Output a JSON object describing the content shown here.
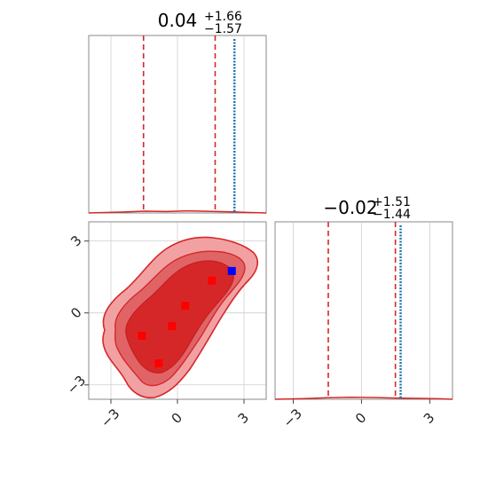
{
  "chart_data": [
    {
      "type": "line",
      "panel": "top-left marginal histogram (parameter 1)",
      "title": {
        "median": "0.04",
        "plus": "+1.66",
        "minus": "−1.57"
      },
      "xlim": [
        -4.0,
        4.0
      ],
      "ylim": [
        0,
        1.0
      ],
      "grid": true,
      "series": [
        {
          "x": [
            -4.0,
            -2.5,
            -1.5,
            -0.5,
            0.5,
            1.5,
            2.5,
            3.1,
            4.0
          ],
          "values": [
            0.0,
            0.005,
            0.01,
            0.008,
            0.012,
            0.009,
            0.006,
            0.003,
            0.0
          ]
        }
      ],
      "quantile_lines": [
        -1.53,
        1.7
      ],
      "blue_vertical": 2.57
    },
    {
      "type": "line",
      "panel": "bottom-right marginal histogram (parameter 2)",
      "title": {
        "median": "−0.02",
        "plus": "+1.51",
        "minus": "−1.44"
      },
      "xlim": [
        -3.8,
        4.0
      ],
      "xticks": [
        "−3",
        "0",
        "3"
      ],
      "ylim": [
        0,
        1.0
      ],
      "grid": true,
      "series": [
        {
          "x": [
            -3.8,
            -2.5,
            -1.5,
            -0.5,
            0.5,
            1.5,
            2.5,
            3.4,
            4.0
          ],
          "values": [
            0.0,
            0.004,
            0.009,
            0.011,
            0.01,
            0.007,
            0.005,
            0.003,
            0.0
          ]
        }
      ],
      "quantile_lines": [
        -1.46,
        1.49
      ],
      "blue_vertical": 1.72
    },
    {
      "type": "scatter",
      "panel": "bottom-left 2D density contours",
      "xlim": [
        -4.0,
        4.0
      ],
      "ylim": [
        -3.6,
        3.8
      ],
      "xticks": [
        "−3",
        "0",
        "3"
      ],
      "yticks": [
        "−3",
        "0",
        "3"
      ],
      "grid": true,
      "red_markers": [
        {
          "x": -1.6,
          "y": -0.95
        },
        {
          "x": -0.85,
          "y": -2.1
        },
        {
          "x": -0.25,
          "y": -0.55
        },
        {
          "x": 0.35,
          "y": 0.3
        },
        {
          "x": 1.55,
          "y": 1.35
        }
      ],
      "blue_marker": {
        "x": 2.45,
        "y": 1.75
      }
    }
  ]
}
